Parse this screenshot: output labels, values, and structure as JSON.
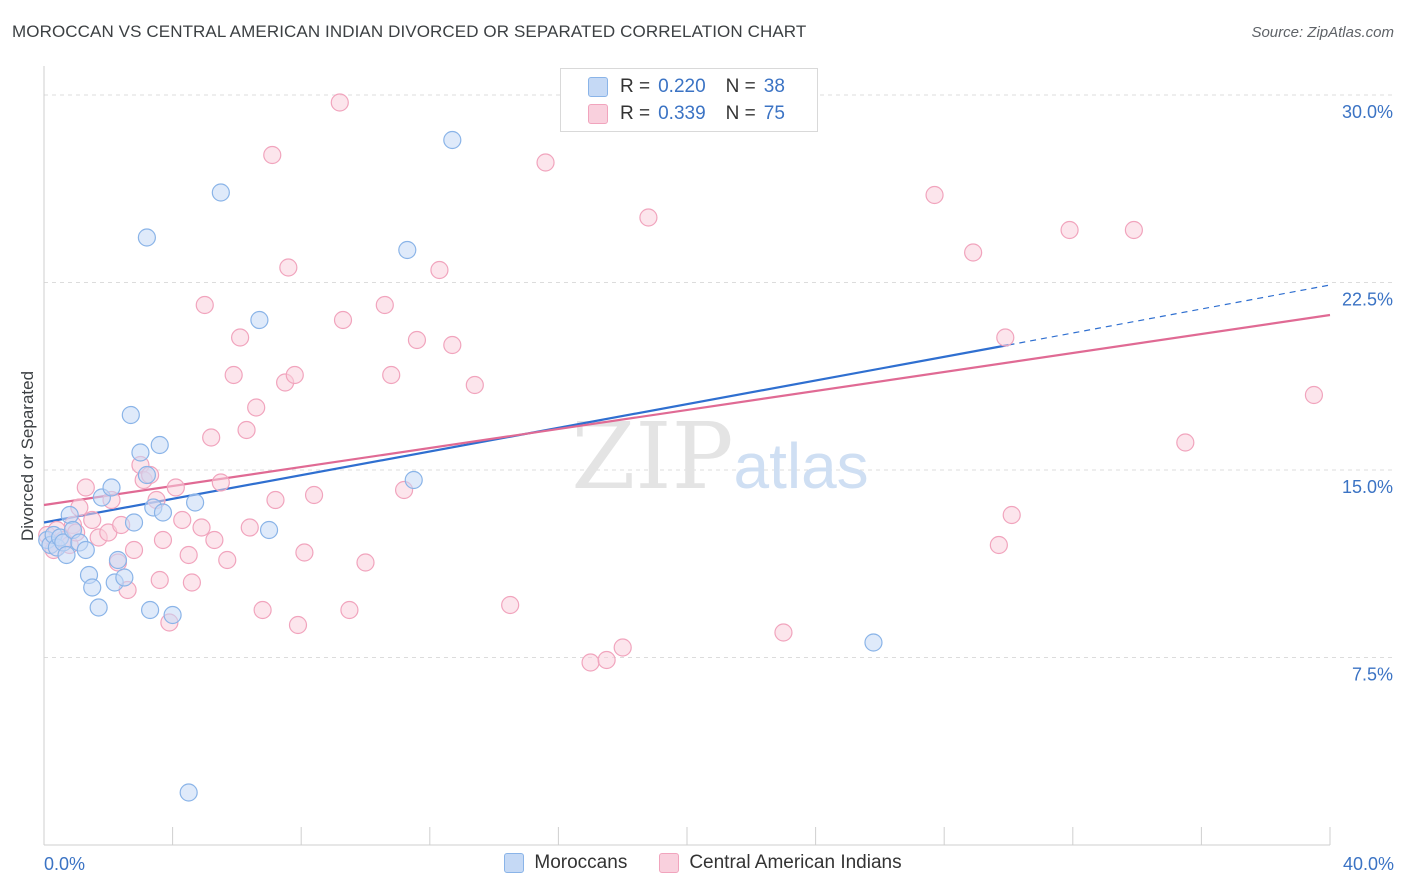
{
  "chart_data": {
    "type": "scatter",
    "title": "MOROCCAN VS CENTRAL AMERICAN INDIAN DIVORCED OR SEPARATED CORRELATION CHART",
    "source": "Source: ZipAtlas.com",
    "xlabel": "",
    "ylabel": "Divorced or Separated",
    "xlim": [
      0,
      40
    ],
    "ylim": [
      0,
      31
    ],
    "x_tick_labels": [
      "0.0%",
      "40.0%"
    ],
    "y_ticks": [
      7.5,
      15.0,
      22.5,
      30.0
    ],
    "y_tick_labels": [
      "7.5%",
      "15.0%",
      "22.5%",
      "30.0%"
    ],
    "grid": true,
    "watermark": "ZIPatlas",
    "legend": {
      "position": "top-center",
      "rows": [
        {
          "r_label": "R =",
          "r_value": "0.220",
          "n_label": "N =",
          "n_value": "38"
        },
        {
          "r_label": "R =",
          "r_value": "0.339",
          "n_label": "N =",
          "n_value": "75"
        }
      ]
    },
    "series": [
      {
        "name": "Moroccans",
        "color": "#8ab4e8",
        "fill": "#c5d9f5",
        "line_color": "#2f6fd0",
        "trend": {
          "x0": 0.0,
          "y0": 12.9,
          "x1": 30.0,
          "y1": 20.0,
          "dash_to_x": 40.0,
          "dash_to_y": 22.4
        },
        "points": [
          [
            0.1,
            12.2
          ],
          [
            0.2,
            12.0
          ],
          [
            0.3,
            12.4
          ],
          [
            0.4,
            11.9
          ],
          [
            0.5,
            12.3
          ],
          [
            0.6,
            12.1
          ],
          [
            0.7,
            11.6
          ],
          [
            0.8,
            13.2
          ],
          [
            0.9,
            12.6
          ],
          [
            1.1,
            12.1
          ],
          [
            1.3,
            11.8
          ],
          [
            1.4,
            10.8
          ],
          [
            1.5,
            10.3
          ],
          [
            1.7,
            9.5
          ],
          [
            1.8,
            13.9
          ],
          [
            2.1,
            14.3
          ],
          [
            2.2,
            10.5
          ],
          [
            2.3,
            11.4
          ],
          [
            2.5,
            10.7
          ],
          [
            2.7,
            17.2
          ],
          [
            2.8,
            12.9
          ],
          [
            3.0,
            15.7
          ],
          [
            3.2,
            14.8
          ],
          [
            3.3,
            9.4
          ],
          [
            3.4,
            13.5
          ],
          [
            3.6,
            16.0
          ],
          [
            3.7,
            13.3
          ],
          [
            4.0,
            9.2
          ],
          [
            4.5,
            2.1
          ],
          [
            4.7,
            13.7
          ],
          [
            5.5,
            26.1
          ],
          [
            6.7,
            21.0
          ],
          [
            7.0,
            12.6
          ],
          [
            11.3,
            23.8
          ],
          [
            11.5,
            14.6
          ],
          [
            12.7,
            28.2
          ],
          [
            25.8,
            8.1
          ],
          [
            3.2,
            24.3
          ]
        ]
      },
      {
        "name": "Central American Indians",
        "color": "#f1a4bd",
        "fill": "#f9d0dd",
        "line_color": "#e06a94",
        "trend": {
          "x0": 0.0,
          "y0": 13.6,
          "x1": 40.0,
          "y1": 21.2
        },
        "points": [
          [
            0.1,
            12.4
          ],
          [
            0.2,
            12.0
          ],
          [
            0.3,
            11.8
          ],
          [
            0.4,
            12.6
          ],
          [
            0.6,
            12.2
          ],
          [
            0.8,
            12.0
          ],
          [
            0.9,
            12.8
          ],
          [
            1.0,
            12.5
          ],
          [
            1.1,
            13.5
          ],
          [
            1.3,
            14.3
          ],
          [
            1.5,
            13.0
          ],
          [
            1.7,
            12.3
          ],
          [
            2.0,
            12.5
          ],
          [
            2.1,
            13.8
          ],
          [
            2.3,
            11.3
          ],
          [
            2.4,
            12.8
          ],
          [
            2.6,
            10.2
          ],
          [
            2.8,
            11.8
          ],
          [
            3.0,
            15.2
          ],
          [
            3.1,
            14.6
          ],
          [
            3.3,
            14.8
          ],
          [
            3.5,
            13.8
          ],
          [
            3.6,
            10.6
          ],
          [
            3.7,
            12.2
          ],
          [
            3.9,
            8.9
          ],
          [
            4.1,
            14.3
          ],
          [
            4.3,
            13.0
          ],
          [
            4.5,
            11.6
          ],
          [
            4.6,
            10.5
          ],
          [
            4.9,
            12.7
          ],
          [
            5.0,
            21.6
          ],
          [
            5.2,
            16.3
          ],
          [
            5.3,
            12.2
          ],
          [
            5.5,
            14.5
          ],
          [
            5.7,
            11.4
          ],
          [
            5.9,
            18.8
          ],
          [
            6.1,
            20.3
          ],
          [
            6.3,
            16.6
          ],
          [
            6.4,
            12.7
          ],
          [
            6.6,
            17.5
          ],
          [
            6.8,
            9.4
          ],
          [
            7.1,
            27.6
          ],
          [
            7.2,
            13.8
          ],
          [
            7.5,
            18.5
          ],
          [
            7.6,
            23.1
          ],
          [
            7.8,
            18.8
          ],
          [
            7.9,
            8.8
          ],
          [
            8.1,
            11.7
          ],
          [
            8.4,
            14.0
          ],
          [
            9.2,
            29.7
          ],
          [
            9.3,
            21.0
          ],
          [
            9.5,
            9.4
          ],
          [
            10.0,
            11.3
          ],
          [
            10.6,
            21.6
          ],
          [
            10.8,
            18.8
          ],
          [
            11.2,
            14.2
          ],
          [
            11.6,
            20.2
          ],
          [
            12.3,
            23.0
          ],
          [
            12.7,
            20.0
          ],
          [
            13.4,
            18.4
          ],
          [
            14.5,
            9.6
          ],
          [
            15.6,
            27.3
          ],
          [
            17.0,
            7.3
          ],
          [
            17.5,
            7.4
          ],
          [
            18.0,
            7.9
          ],
          [
            18.8,
            25.1
          ],
          [
            23.0,
            8.5
          ],
          [
            27.7,
            26.0
          ],
          [
            28.9,
            23.7
          ],
          [
            29.7,
            12.0
          ],
          [
            29.9,
            20.3
          ],
          [
            30.1,
            13.2
          ],
          [
            31.9,
            24.6
          ],
          [
            33.9,
            24.6
          ],
          [
            35.5,
            16.1
          ],
          [
            39.5,
            18.0
          ]
        ]
      }
    ]
  }
}
